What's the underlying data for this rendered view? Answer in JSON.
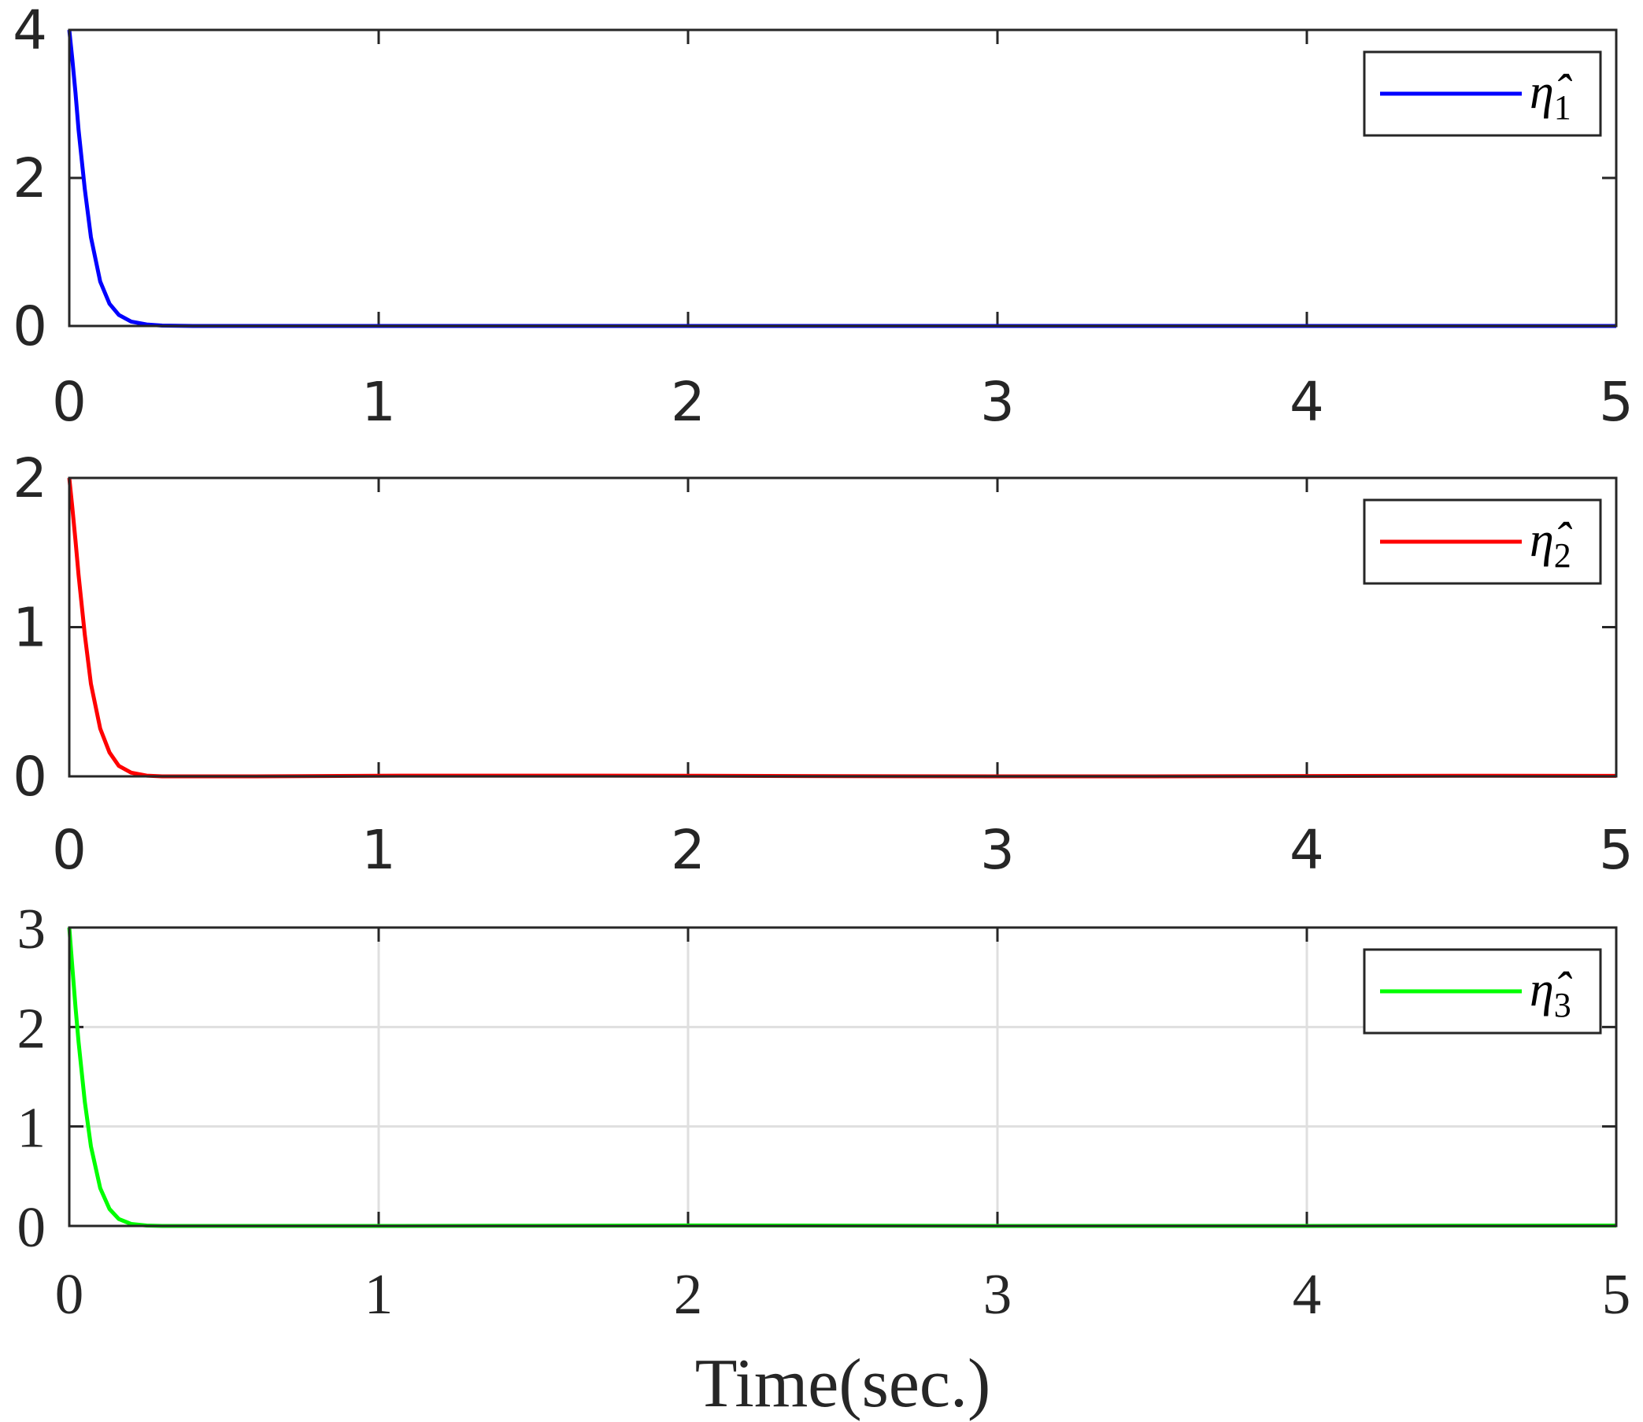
{
  "chart_data": [
    {
      "type": "line",
      "xlim": [
        0,
        5
      ],
      "ylim": [
        0,
        4
      ],
      "xticks": [
        "0",
        "1",
        "2",
        "3",
        "4",
        "5"
      ],
      "yticks": [
        "0",
        "2",
        "4"
      ],
      "grid": false,
      "legend_position": "top-right",
      "series": [
        {
          "name": "η̂1",
          "legend_base": "η̂",
          "legend_sub": "1",
          "color": "#0000ff",
          "x": [
            0,
            0.01,
            0.02,
            0.03,
            0.05,
            0.07,
            0.1,
            0.13,
            0.16,
            0.2,
            0.25,
            0.3,
            0.4,
            0.6,
            1,
            2,
            3,
            4,
            5
          ],
          "y": [
            4,
            3.6,
            3.15,
            2.65,
            1.85,
            1.2,
            0.6,
            0.3,
            0.15,
            0.06,
            0.02,
            0.005,
            0,
            0,
            0,
            0,
            0,
            0,
            0
          ]
        }
      ]
    },
    {
      "type": "line",
      "xlim": [
        0,
        5
      ],
      "ylim": [
        0,
        2
      ],
      "xticks": [
        "0",
        "1",
        "2",
        "3",
        "4",
        "5"
      ],
      "yticks": [
        "0",
        "1",
        "2"
      ],
      "grid": false,
      "legend_position": "top-right",
      "series": [
        {
          "name": "η̂2",
          "legend_base": "η̂",
          "legend_sub": "2",
          "color": "#ff0000",
          "x": [
            0,
            0.01,
            0.02,
            0.03,
            0.05,
            0.07,
            0.1,
            0.13,
            0.16,
            0.2,
            0.25,
            0.3,
            0.4,
            0.6,
            1,
            1.5,
            2,
            2.5,
            3,
            3.5,
            4,
            4.5,
            5
          ],
          "y": [
            2,
            1.8,
            1.58,
            1.35,
            0.95,
            0.62,
            0.32,
            0.16,
            0.07,
            0.025,
            0.005,
            0,
            -0.005,
            -0.003,
            0.004,
            0.005,
            0.004,
            0.001,
            -0.003,
            -0.003,
            0.002,
            0.004,
            0.003
          ]
        }
      ]
    },
    {
      "type": "line",
      "xlim": [
        0,
        5
      ],
      "ylim": [
        0,
        3
      ],
      "xticks": [
        "0",
        "1",
        "2",
        "3",
        "4",
        "5"
      ],
      "yticks": [
        "0",
        "1",
        "2",
        "3"
      ],
      "xlabel": "Time(sec.)",
      "grid": true,
      "legend_position": "top-right",
      "series": [
        {
          "name": "η̂3",
          "legend_base": "η̂",
          "legend_sub": "3",
          "color": "#00ff00",
          "x": [
            0,
            0.01,
            0.02,
            0.03,
            0.05,
            0.07,
            0.1,
            0.13,
            0.16,
            0.2,
            0.25,
            0.3,
            0.4,
            0.6,
            0.8,
            1,
            1.5,
            2,
            2.5,
            3,
            3.5,
            4,
            4.5,
            5
          ],
          "y": [
            3,
            2.6,
            2.2,
            1.85,
            1.25,
            0.8,
            0.38,
            0.17,
            0.07,
            0.02,
            0.004,
            0,
            -0.008,
            -0.012,
            -0.01,
            -0.005,
            0.002,
            0.005,
            0.003,
            -0.004,
            -0.006,
            -0.002,
            0.003,
            0.004
          ]
        }
      ]
    }
  ]
}
